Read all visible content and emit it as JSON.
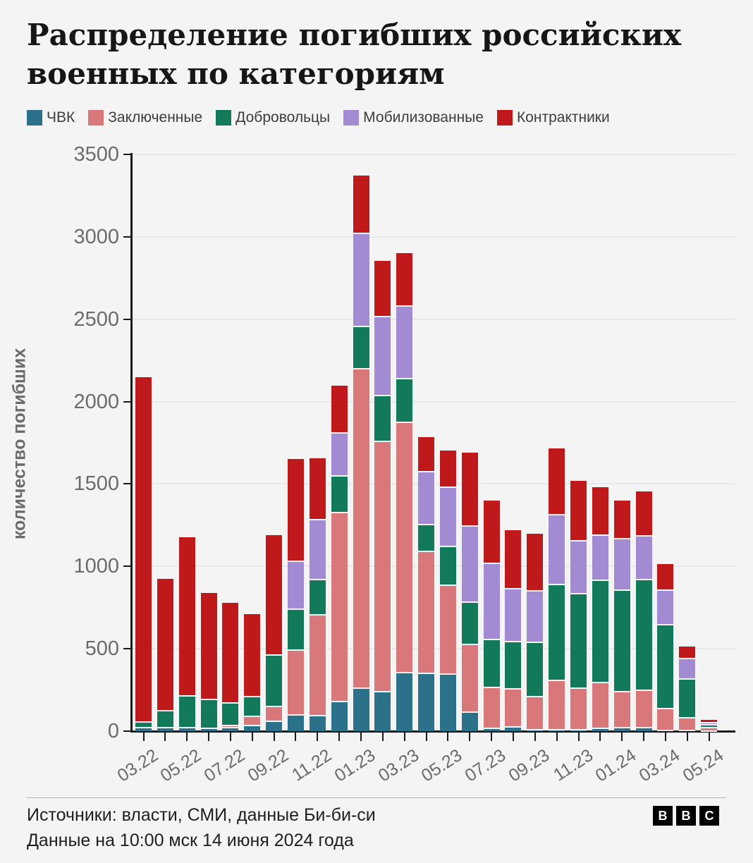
{
  "title": "Распределение погибших российских военных по категориям",
  "colors": {
    "background": "#f4f4f4",
    "gridline": "#e9e9e9",
    "axis": "#1a1a1a",
    "tick_text": "#6b6b6b"
  },
  "chart_data": {
    "type": "bar",
    "stacked": true,
    "title": "Распределение погибших российских военных по категориям",
    "ylabel": "количество погибших",
    "xlabel": "",
    "ylim": [
      0,
      3500
    ],
    "ytick_step": 500,
    "grid": true,
    "legend_position": "top",
    "categories": [
      "03.22",
      "04.22",
      "05.22",
      "06.22",
      "07.22",
      "08.22",
      "09.22",
      "10.22",
      "11.22",
      "12.22",
      "01.23",
      "02.23",
      "03.23",
      "04.23",
      "05.23",
      "06.23",
      "07.23",
      "08.23",
      "09.23",
      "10.23",
      "11.23",
      "12.23",
      "01.24",
      "02.24",
      "03.24",
      "04.24",
      "05.24"
    ],
    "x_tick_labels_shown": [
      "03.22",
      "05.22",
      "07.22",
      "09.22",
      "11.22",
      "01.23",
      "03.23",
      "05.23",
      "07.23",
      "09.23",
      "11.23",
      "01.24",
      "03.24",
      "05.24"
    ],
    "series": [
      {
        "name": "ЧВК",
        "color": "#2a7189",
        "values": [
          20,
          20,
          20,
          18,
          20,
          35,
          60,
          100,
          95,
          180,
          260,
          240,
          355,
          350,
          345,
          115,
          15,
          25,
          10,
          10,
          10,
          15,
          20,
          20,
          5,
          5,
          2
        ]
      },
      {
        "name": "Заключенные",
        "color": "#d8787b",
        "values": [
          0,
          0,
          0,
          0,
          15,
          55,
          90,
          390,
          610,
          1145,
          1940,
          1520,
          1520,
          740,
          540,
          410,
          250,
          230,
          200,
          300,
          250,
          280,
          220,
          230,
          130,
          75,
          18
        ]
      },
      {
        "name": "Добровольцы",
        "color": "#12795a",
        "values": [
          35,
          105,
          195,
          175,
          135,
          120,
          310,
          250,
          215,
          225,
          255,
          275,
          265,
          165,
          235,
          260,
          290,
          290,
          330,
          580,
          575,
          620,
          615,
          670,
          510,
          235,
          18
        ]
      },
      {
        "name": "Мобилизованные",
        "color": "#a28bd3",
        "values": [
          0,
          0,
          0,
          0,
          0,
          0,
          0,
          290,
          365,
          260,
          565,
          480,
          440,
          320,
          360,
          460,
          465,
          320,
          310,
          425,
          320,
          275,
          315,
          265,
          210,
          125,
          15
        ]
      },
      {
        "name": "Контрактники",
        "color": "#c0191c",
        "values": [
          2095,
          800,
          960,
          645,
          610,
          500,
          730,
          620,
          370,
          285,
          350,
          340,
          320,
          210,
          225,
          445,
          380,
          355,
          350,
          400,
          365,
          290,
          230,
          270,
          160,
          72,
          15
        ]
      }
    ]
  },
  "footer": {
    "source": "Источники: власти, СМИ, данные Би-би-си",
    "note": "Данные на 10:00 мск 14 июня 2024 года"
  },
  "logo": {
    "letters": [
      "B",
      "B",
      "C"
    ]
  }
}
